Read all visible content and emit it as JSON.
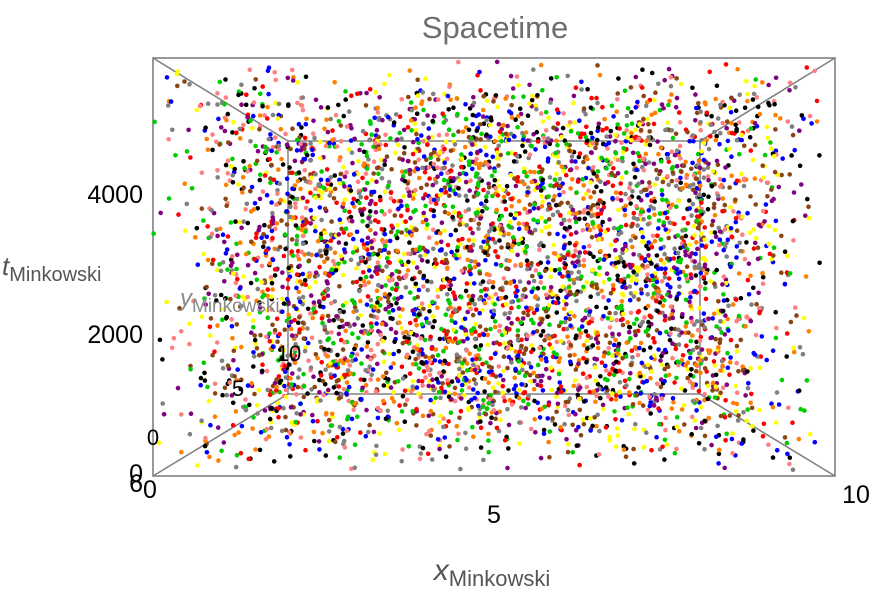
{
  "chart_data": {
    "type": "scatter",
    "title": "Spacetime",
    "axes": {
      "x": {
        "label": "x",
        "label_sub": "Minkowski",
        "range": [
          0,
          10
        ],
        "ticks": [
          "0",
          "5",
          "10"
        ]
      },
      "y": {
        "label": "y",
        "label_sub": "Minkowski",
        "range": [
          0,
          10
        ],
        "ticks": [
          "0",
          "5",
          "10"
        ]
      },
      "t": {
        "label": "t",
        "label_sub": "Minkowski",
        "range": [
          0,
          5800
        ],
        "ticks": [
          "0",
          "2000",
          "4000"
        ]
      }
    },
    "extra_tick_label": "6",
    "point_count": 5000,
    "series_colors": [
      "#ff0000",
      "#0000ff",
      "#000000",
      "#ffff00",
      "#ff8000",
      "#8b4513",
      "#800080",
      "#00cc00",
      "#ff8080",
      "#808080"
    ],
    "seed": 20240607,
    "projection": "3d box",
    "grid": false,
    "legend": "none"
  }
}
